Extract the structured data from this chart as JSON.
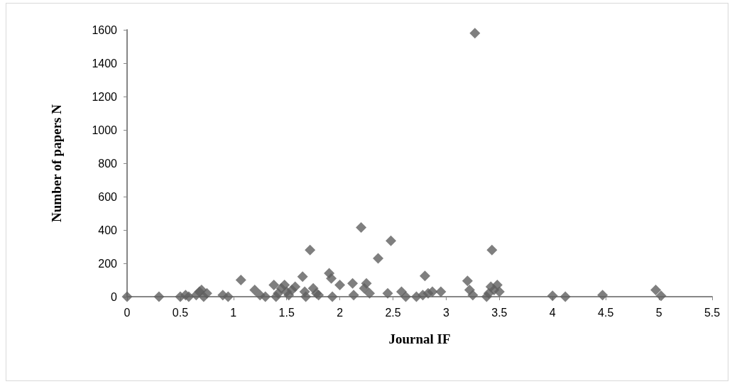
{
  "chart_data": {
    "type": "scatter",
    "xlabel": "Journal IF",
    "ylabel": "Number of papers N",
    "marker": "diamond",
    "grid": false,
    "xlim": [
      0,
      5.5
    ],
    "xticks": [
      0,
      0.5,
      1,
      1.5,
      2,
      2.5,
      3,
      3.5,
      4,
      4.5,
      5,
      5.5
    ],
    "ylim": [
      0,
      1600
    ],
    "yticks": [
      0,
      200,
      400,
      600,
      800,
      1000,
      1200,
      1400,
      1600
    ],
    "series": [
      {
        "color": "#5f5f5f",
        "x": [
          0,
          0.3,
          0.5,
          0.55,
          0.58,
          0.65,
          0.68,
          0.7,
          0.72,
          0.75,
          0.9,
          0.95,
          1.07,
          1.2,
          1.25,
          1.3,
          1.38,
          1.4,
          1.42,
          1.45,
          1.48,
          1.5,
          1.52,
          1.55,
          1.58,
          1.65,
          1.67,
          1.68,
          1.72,
          1.75,
          1.78,
          1.8,
          1.9,
          1.92,
          1.93,
          2.0,
          2.12,
          2.13,
          2.2,
          2.23,
          2.25,
          2.28,
          2.36,
          2.45,
          2.48,
          2.58,
          2.62,
          2.72,
          2.78,
          2.8,
          2.83,
          2.87,
          2.95,
          3.2,
          3.22,
          3.25,
          3.27,
          3.38,
          3.4,
          3.42,
          3.43,
          3.45,
          3.48,
          3.5,
          4.0,
          4.12,
          4.47,
          4.97,
          5.02
        ],
        "values": [
          0,
          0,
          0,
          10,
          0,
          10,
          30,
          40,
          0,
          20,
          10,
          0,
          100,
          40,
          10,
          0,
          70,
          0,
          20,
          50,
          70,
          30,
          10,
          40,
          60,
          120,
          30,
          0,
          280,
          50,
          20,
          10,
          140,
          110,
          0,
          70,
          80,
          10,
          415,
          50,
          80,
          20,
          230,
          20,
          335,
          30,
          0,
          0,
          10,
          125,
          20,
          30,
          30,
          95,
          40,
          10,
          1580,
          0,
          20,
          60,
          280,
          40,
          70,
          30,
          5,
          0,
          10,
          40,
          5
        ]
      }
    ]
  }
}
